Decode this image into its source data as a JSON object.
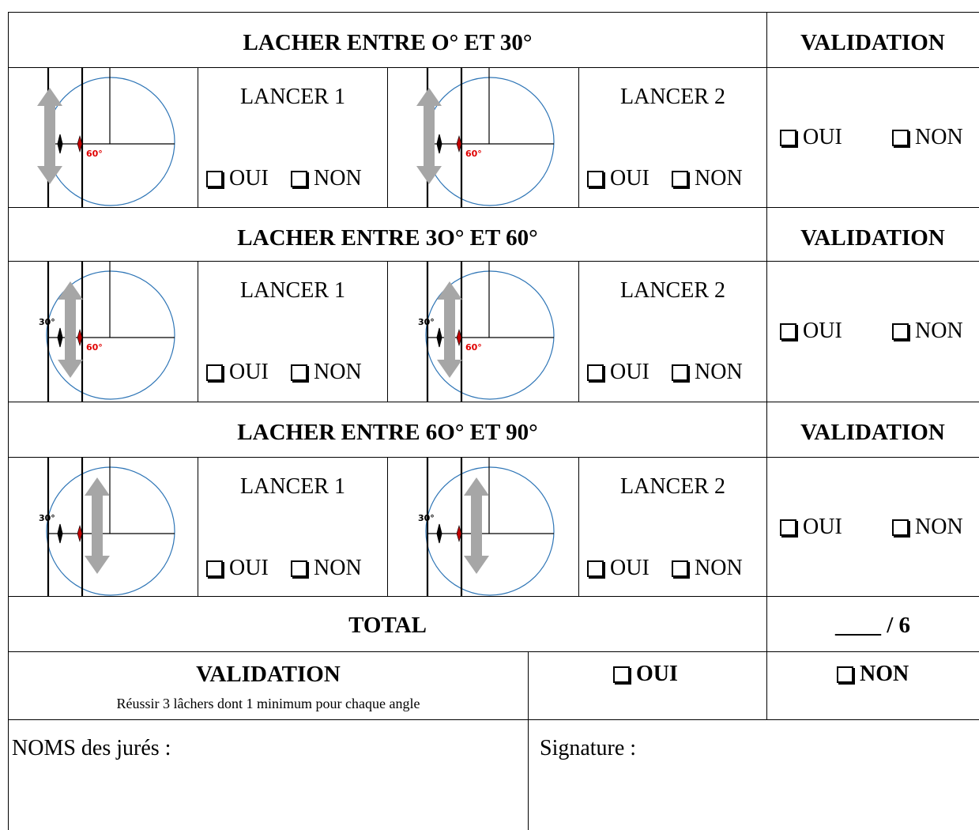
{
  "sections": [
    {
      "title": "LACHER ENTRE O° ET 30°",
      "validation_header": "VALIDATION",
      "figures": [
        {
          "labels": [
            "60°"
          ]
        },
        {
          "labels": [
            "60°"
          ]
        }
      ],
      "throws": [
        {
          "label": "LANCER 1",
          "yes": "OUI",
          "no": "NON"
        },
        {
          "label": "LANCER 2",
          "yes": "OUI",
          "no": "NON"
        }
      ],
      "validation": {
        "yes": "OUI",
        "no": "NON"
      }
    },
    {
      "title": "LACHER ENTRE 3O° ET 60°",
      "validation_header": "VALIDATION",
      "figures": [
        {
          "labels": [
            "30°",
            "60°"
          ]
        },
        {
          "labels": [
            "30°",
            "60°"
          ]
        }
      ],
      "throws": [
        {
          "label": "LANCER 1",
          "yes": "OUI",
          "no": "NON"
        },
        {
          "label": "LANCER 2",
          "yes": "OUI",
          "no": "NON"
        }
      ],
      "validation": {
        "yes": "OUI",
        "no": "NON"
      }
    },
    {
      "title": "LACHER ENTRE 6O° ET 90°",
      "validation_header": "VALIDATION",
      "figures": [
        {
          "labels": [
            "30°"
          ]
        },
        {
          "labels": [
            "30°"
          ]
        }
      ],
      "throws": [
        {
          "label": "LANCER 1",
          "yes": "OUI",
          "no": "NON"
        },
        {
          "label": "LANCER 2",
          "yes": "OUI",
          "no": "NON"
        }
      ],
      "validation": {
        "yes": "OUI",
        "no": "NON"
      }
    }
  ],
  "total": {
    "label": "TOTAL",
    "score": "____ / 6"
  },
  "final_validation": {
    "title": "VALIDATION",
    "note": "Réussir 3 lâchers dont 1 minimum pour chaque angle",
    "yes": "OUI",
    "no": "NON"
  },
  "footer": {
    "judges": "NOMS des jurés :",
    "signature": "Signature :"
  }
}
